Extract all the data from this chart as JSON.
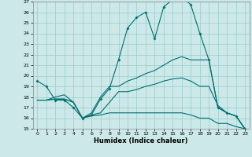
{
  "xlabel": "Humidex (Indice chaleur)",
  "bg_color": "#cce8e8",
  "grid_color": "#99cccc",
  "line_color": "#007070",
  "xlim": [
    -0.5,
    23.5
  ],
  "ylim": [
    15,
    27
  ],
  "xticks": [
    0,
    1,
    2,
    3,
    4,
    5,
    6,
    7,
    8,
    9,
    10,
    11,
    12,
    13,
    14,
    15,
    16,
    17,
    18,
    19,
    20,
    21,
    22,
    23
  ],
  "yticks": [
    15,
    16,
    17,
    18,
    19,
    20,
    21,
    22,
    23,
    24,
    25,
    26,
    27
  ],
  "line1_x": [
    0,
    1,
    2,
    3,
    4,
    5,
    6,
    7,
    8,
    9,
    10,
    11,
    12,
    13,
    14,
    15,
    16,
    17,
    18,
    19,
    20,
    21,
    22,
    23
  ],
  "line1_y": [
    19.5,
    19.0,
    17.7,
    17.7,
    17.0,
    16.0,
    16.3,
    17.8,
    18.8,
    21.5,
    24.5,
    25.5,
    26.0,
    23.5,
    26.5,
    27.2,
    27.5,
    26.7,
    24.0,
    21.5,
    17.0,
    16.5,
    16.2,
    15.0
  ],
  "line2_x": [
    0,
    1,
    2,
    3,
    4,
    5,
    6,
    7,
    8,
    9,
    10,
    11,
    12,
    13,
    14,
    15,
    16,
    17,
    18,
    19,
    20,
    21,
    22,
    23
  ],
  "line2_y": [
    17.7,
    17.7,
    17.8,
    17.8,
    17.5,
    16.0,
    16.3,
    16.5,
    17.5,
    18.5,
    18.5,
    18.7,
    19.0,
    19.2,
    19.5,
    19.7,
    19.8,
    19.5,
    19.0,
    19.0,
    17.2,
    16.5,
    16.2,
    15.0
  ],
  "line3_x": [
    0,
    1,
    2,
    3,
    4,
    5,
    6,
    7,
    8,
    9,
    10,
    11,
    12,
    13,
    14,
    15,
    16,
    17,
    18,
    19,
    20,
    21,
    22,
    23
  ],
  "line3_y": [
    17.7,
    17.7,
    18.0,
    18.2,
    17.5,
    16.0,
    16.5,
    18.0,
    19.0,
    19.0,
    19.5,
    19.8,
    20.2,
    20.5,
    21.0,
    21.5,
    21.8,
    21.5,
    21.5,
    21.5,
    17.0,
    16.5,
    16.2,
    15.0
  ],
  "line4_x": [
    0,
    1,
    2,
    3,
    4,
    5,
    6,
    7,
    8,
    9,
    10,
    11,
    12,
    13,
    14,
    15,
    16,
    17,
    18,
    19,
    20,
    21,
    22,
    23
  ],
  "line4_y": [
    17.7,
    17.7,
    17.8,
    17.8,
    17.5,
    16.0,
    16.2,
    16.3,
    16.5,
    16.5,
    16.5,
    16.5,
    16.5,
    16.5,
    16.5,
    16.5,
    16.5,
    16.3,
    16.0,
    16.0,
    15.5,
    15.5,
    15.2,
    15.0
  ]
}
